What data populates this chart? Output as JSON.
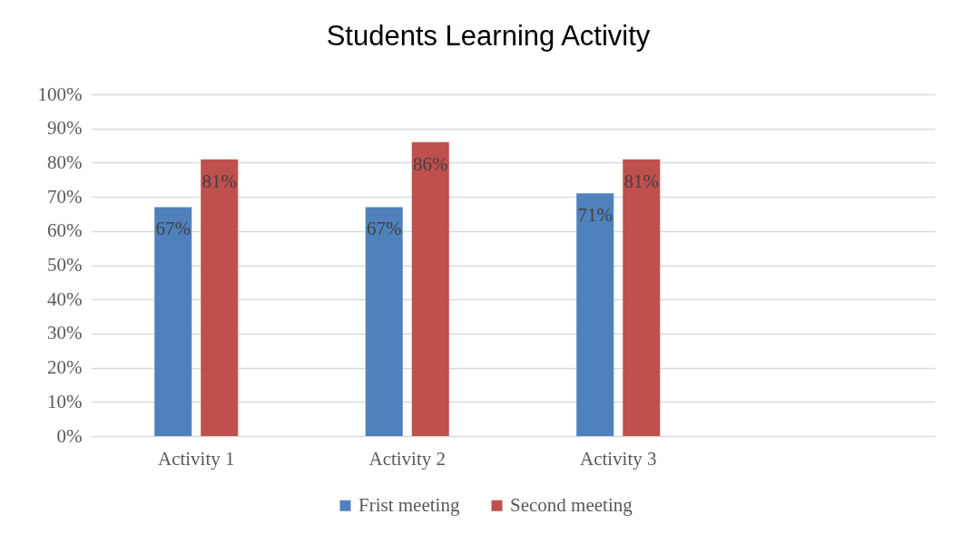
{
  "chart_data": {
    "type": "bar",
    "title": "Students Learning Activity",
    "categories": [
      "Activity 1",
      "Activity 2",
      "Activity 3",
      null
    ],
    "series": [
      {
        "name": "Frist meeting",
        "color": "#4f81bd",
        "values": [
          67,
          67,
          71,
          null
        ],
        "value_labels": [
          "67%",
          "67%",
          "71%",
          null
        ]
      },
      {
        "name": "Second meeting",
        "color": "#c0504d",
        "values": [
          81,
          86,
          81,
          null
        ],
        "value_labels": [
          "81%",
          "86%",
          "81%",
          null
        ]
      }
    ],
    "ylim": [
      0,
      100
    ],
    "yticks": [
      {
        "value": 0,
        "label": "0%"
      },
      {
        "value": 10,
        "label": "10%"
      },
      {
        "value": 20,
        "label": "20%"
      },
      {
        "value": 30,
        "label": "30%"
      },
      {
        "value": 40,
        "label": "40%"
      },
      {
        "value": 50,
        "label": "50%"
      },
      {
        "value": 60,
        "label": "60%"
      },
      {
        "value": 70,
        "label": "70%"
      },
      {
        "value": 80,
        "label": "80%"
      },
      {
        "value": 90,
        "label": "90%"
      },
      {
        "value": 100,
        "label": "100%"
      }
    ],
    "grid": "y",
    "legend": "bottom"
  }
}
